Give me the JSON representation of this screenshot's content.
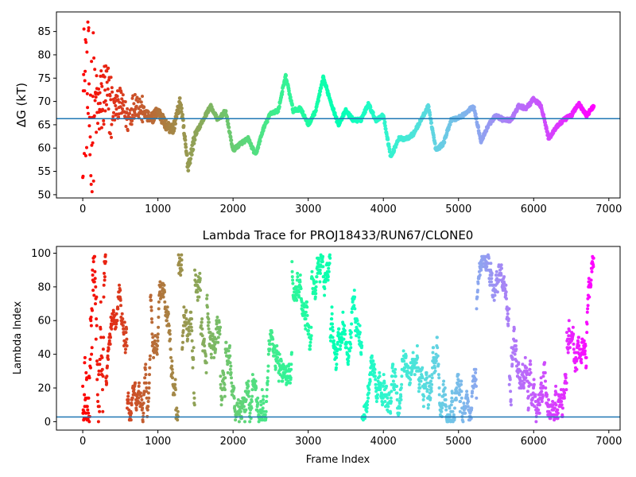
{
  "chart_data": [
    {
      "type": "scatter",
      "title": "",
      "xlabel": "",
      "ylabel": "ΔG (kT)",
      "xlim": [
        -350,
        7150
      ],
      "ylim": [
        49.3,
        89.2
      ],
      "xticks": [
        0,
        1000,
        2000,
        3000,
        4000,
        5000,
        6000,
        7000
      ],
      "xtick_labels": [
        "0",
        "1000",
        "2000",
        "3000",
        "4000",
        "5000",
        "6000",
        "7000"
      ],
      "yticks": [
        50,
        55,
        60,
        65,
        70,
        75,
        80,
        85
      ],
      "ytick_labels": [
        "50",
        "55",
        "60",
        "65",
        "70",
        "75",
        "80",
        "85"
      ],
      "hline": 66.3,
      "hline_color": "#1f77b4",
      "colormap": "rainbow (red at frame 0 → violet at last frame)",
      "x_max": 6800,
      "trace_keypoints": [
        [
          0,
          70
        ],
        [
          50,
          75
        ],
        [
          100,
          65
        ],
        [
          150,
          70
        ],
        [
          200,
          68
        ],
        [
          300,
          72
        ],
        [
          400,
          68
        ],
        [
          500,
          70
        ],
        [
          600,
          66
        ],
        [
          700,
          70
        ],
        [
          800,
          68
        ],
        [
          900,
          66
        ],
        [
          1000,
          68
        ],
        [
          1100,
          65
        ],
        [
          1200,
          64
        ],
        [
          1300,
          70
        ],
        [
          1400,
          56
        ],
        [
          1500,
          63
        ],
        [
          1600,
          66
        ],
        [
          1700,
          69
        ],
        [
          1800,
          66
        ],
        [
          1900,
          68
        ],
        [
          2000,
          59.5
        ],
        [
          2100,
          61
        ],
        [
          2200,
          62
        ],
        [
          2300,
          58.5
        ],
        [
          2400,
          64
        ],
        [
          2500,
          67.5
        ],
        [
          2600,
          68
        ],
        [
          2700,
          75.5
        ],
        [
          2800,
          68
        ],
        [
          2900,
          68.5
        ],
        [
          3000,
          65
        ],
        [
          3100,
          68
        ],
        [
          3200,
          75
        ],
        [
          3300,
          70
        ],
        [
          3400,
          65
        ],
        [
          3500,
          68
        ],
        [
          3600,
          66
        ],
        [
          3700,
          66
        ],
        [
          3800,
          69.5
        ],
        [
          3900,
          66
        ],
        [
          4000,
          67
        ],
        [
          4100,
          58
        ],
        [
          4200,
          62
        ],
        [
          4300,
          62
        ],
        [
          4400,
          63
        ],
        [
          4500,
          66
        ],
        [
          4600,
          69
        ],
        [
          4700,
          59.5
        ],
        [
          4800,
          61
        ],
        [
          4900,
          66
        ],
        [
          5000,
          66.5
        ],
        [
          5100,
          67.5
        ],
        [
          5200,
          69
        ],
        [
          5300,
          61.5
        ],
        [
          5400,
          65
        ],
        [
          5500,
          67
        ],
        [
          5600,
          66
        ],
        [
          5700,
          66
        ],
        [
          5800,
          69
        ],
        [
          5900,
          68.5
        ],
        [
          6000,
          70.5
        ],
        [
          6100,
          69
        ],
        [
          6200,
          62
        ],
        [
          6300,
          64.5
        ],
        [
          6400,
          66
        ],
        [
          6500,
          67
        ],
        [
          6600,
          69.5
        ],
        [
          6700,
          67
        ],
        [
          6800,
          69
        ]
      ]
    },
    {
      "type": "scatter",
      "title": "Lambda Trace for PROJ18433/RUN67/CLONE0",
      "xlabel": "Frame Index",
      "ylabel": "Lambda Index",
      "xlim": [
        -350,
        7150
      ],
      "ylim": [
        -5,
        104
      ],
      "xticks": [
        0,
        1000,
        2000,
        3000,
        4000,
        5000,
        6000,
        7000
      ],
      "xtick_labels": [
        "0",
        "1000",
        "2000",
        "3000",
        "4000",
        "5000",
        "6000",
        "7000"
      ],
      "yticks": [
        0,
        20,
        40,
        60,
        80,
        100
      ],
      "ytick_labels": [
        "0",
        "20",
        "40",
        "60",
        "80",
        "100"
      ],
      "hline": 2.8,
      "hline_color": "#1f77b4",
      "colormap": "rainbow (red at frame 0 → violet at last frame)",
      "x_max": 6800,
      "lambda_range": [
        0,
        99
      ]
    }
  ]
}
